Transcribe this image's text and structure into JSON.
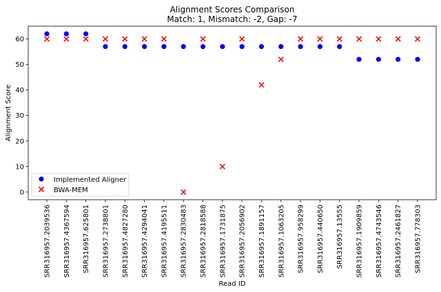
{
  "chart_data": {
    "type": "scatter",
    "title_lines": [
      "Alignment Scores Comparison",
      "Match: 1, Mismatch: -2, Gap: -7"
    ],
    "xlabel": "Read ID",
    "ylabel": "Alignment Score",
    "ylim": [
      -3,
      65
    ],
    "yticks": [
      0,
      10,
      20,
      30,
      40,
      50,
      60
    ],
    "grid": false,
    "legend_position": "lower-left",
    "categories": [
      "SRR316957.2039536",
      "SRR316957.4367594",
      "SRR316957.625801",
      "SRR316957.2738801",
      "SRR316957.4827280",
      "SRR316957.4294041",
      "SRR316957.4195511",
      "SRR316957.2830483",
      "SRR316957.2818588",
      "SRR316957.1731875",
      "SRR316957.2056902",
      "SRR316957.1891157",
      "SRR316957.1063205",
      "SRR316957.958299",
      "SRR316957.440650",
      "SRR316957.13555",
      "SRR316957.1909859",
      "SRR316957.4743546",
      "SRR316957.2461827",
      "SRR316957.778303"
    ],
    "series": [
      {
        "name": "Implemented Aligner",
        "marker": "circle",
        "color": "#0000ff",
        "values": [
          62,
          62,
          62,
          57,
          57,
          57,
          57,
          57,
          57,
          57,
          57,
          57,
          57,
          57,
          57,
          57,
          52,
          52,
          52,
          52
        ]
      },
      {
        "name": "BWA-MEM",
        "marker": "x",
        "color": "#ff0000",
        "values": [
          60,
          60,
          60,
          60,
          60,
          60,
          60,
          0,
          60,
          10,
          60,
          42,
          52,
          60,
          60,
          60,
          60,
          60,
          60,
          60
        ]
      }
    ]
  }
}
